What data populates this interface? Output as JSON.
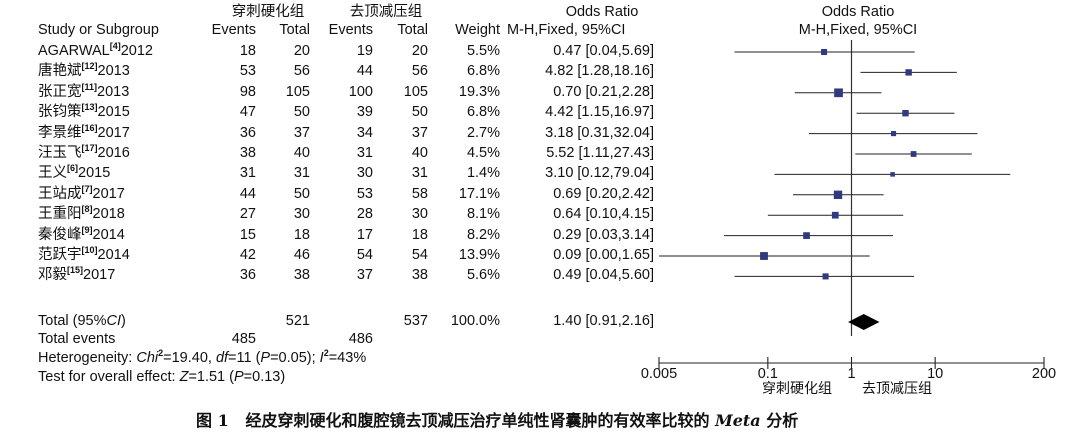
{
  "chart_data": {
    "type": "forest",
    "experimental_group": "穿刺硬化组",
    "control_group": "去顶减压组",
    "columns": {
      "study": "Study or Subgroup",
      "events": "Events",
      "total": "Total",
      "weight": "Weight",
      "or_title": "Odds Ratio",
      "or_method": "M-H,Fixed, 95%CI"
    },
    "studies": [
      {
        "name": "AGARWAL",
        "ref": "[4]",
        "year": "2012",
        "e1": "18",
        "n1": "20",
        "e2": "19",
        "n2": "20",
        "weight": "5.5%",
        "ci_text": "0.47 [0.04,5.69]",
        "or": 0.47,
        "lo": 0.04,
        "hi": 5.69
      },
      {
        "name": "唐艳斌",
        "ref": "[12]",
        "year": "2013",
        "e1": "53",
        "n1": "56",
        "e2": "44",
        "n2": "56",
        "weight": "6.8%",
        "ci_text": "4.82 [1.28,18.16]",
        "or": 4.82,
        "lo": 1.28,
        "hi": 18.16
      },
      {
        "name": "张正宽",
        "ref": "[11]",
        "year": "2013",
        "e1": "98",
        "n1": "105",
        "e2": "100",
        "n2": "105",
        "weight": "19.3%",
        "ci_text": "0.70 [0.21,2.28]",
        "or": 0.7,
        "lo": 0.21,
        "hi": 2.28
      },
      {
        "name": "张钧策",
        "ref": "[13]",
        "year": "2015",
        "e1": "47",
        "n1": "50",
        "e2": "39",
        "n2": "50",
        "weight": "6.8%",
        "ci_text": "4.42 [1.15,16.97]",
        "or": 4.42,
        "lo": 1.15,
        "hi": 16.97
      },
      {
        "name": "李景维",
        "ref": "[16]",
        "year": "2017",
        "e1": "36",
        "n1": "37",
        "e2": "34",
        "n2": "37",
        "weight": "2.7%",
        "ci_text": "3.18 [0.31,32.04]",
        "or": 3.18,
        "lo": 0.31,
        "hi": 32.04
      },
      {
        "name": "汪玉飞",
        "ref": "[17]",
        "year": "2016",
        "e1": "38",
        "n1": "40",
        "e2": "31",
        "n2": "40",
        "weight": "4.5%",
        "ci_text": "5.52 [1.11,27.43]",
        "or": 5.52,
        "lo": 1.11,
        "hi": 27.43
      },
      {
        "name": "王义",
        "ref": "[6]",
        "year": "2015",
        "e1": "31",
        "n1": "31",
        "e2": "30",
        "n2": "31",
        "weight": "1.4%",
        "ci_text": "3.10 [0.12,79.04]",
        "or": 3.1,
        "lo": 0.12,
        "hi": 79.04
      },
      {
        "name": "王站成",
        "ref": "[7]",
        "year": "2017",
        "e1": "44",
        "n1": "50",
        "e2": "53",
        "n2": "58",
        "weight": "17.1%",
        "ci_text": "0.69 [0.20,2.42]",
        "or": 0.69,
        "lo": 0.2,
        "hi": 2.42
      },
      {
        "name": "王重阳",
        "ref": "[8]",
        "year": "2018",
        "e1": "27",
        "n1": "30",
        "e2": "28",
        "n2": "30",
        "weight": "8.1%",
        "ci_text": "0.64 [0.10,4.15]",
        "or": 0.64,
        "lo": 0.1,
        "hi": 4.15
      },
      {
        "name": "秦俊峰",
        "ref": "[9]",
        "year": "2014",
        "e1": "15",
        "n1": "18",
        "e2": "17",
        "n2": "18",
        "weight": "8.2%",
        "ci_text": "0.29 [0.03,3.14]",
        "or": 0.29,
        "lo": 0.03,
        "hi": 3.14
      },
      {
        "name": "范跃宇",
        "ref": "[10]",
        "year": "2014",
        "e1": "42",
        "n1": "46",
        "e2": "54",
        "n2": "54",
        "weight": "13.9%",
        "ci_text": "0.09 [0.00,1.65]",
        "or": 0.09,
        "lo": 0.0,
        "hi": 1.65
      },
      {
        "name": "邓毅",
        "ref": "[15]",
        "year": "2017",
        "e1": "36",
        "n1": "38",
        "e2": "37",
        "n2": "38",
        "weight": "5.6%",
        "ci_text": "0.49 [0.04,5.60]",
        "or": 0.49,
        "lo": 0.04,
        "hi": 5.6
      }
    ],
    "total": {
      "label_prefix": "Total (95%",
      "label_ci": "CI",
      "label_suffix": ")",
      "n1": "521",
      "n2": "537",
      "weight": "100.0%",
      "ci_text": "1.40 [0.91,2.16]",
      "or": 1.4,
      "lo": 0.91,
      "hi": 2.16
    },
    "total_events": {
      "label": "Total events",
      "e1": "485",
      "e2": "486"
    },
    "heterogeneity": {
      "prefix": "Heterogeneity: ",
      "chi_label": "Chi",
      "chi_sup": "2",
      "chi_value": "=19.40, ",
      "df_label": "df",
      "df_value": "=11 (",
      "p_label": "P",
      "p_value": "=0.05); ",
      "i_label": "I",
      "i_sup": "2",
      "i_value": "=43%"
    },
    "overall_effect": {
      "prefix": "Test for overall effect: ",
      "z_label": "Z",
      "z_value": "=1.51 (",
      "p_label": "P",
      "p_value": "=0.13)"
    },
    "x_axis": {
      "scale": "log",
      "range": [
        0.005,
        200
      ],
      "ticks": [
        0.005,
        0.1,
        1,
        10,
        200
      ],
      "tick_labels": [
        "0.005",
        "0.1",
        "1",
        "10",
        "200"
      ],
      "favours_left": "穿刺硬化组",
      "favours_right": "去顶减压组"
    },
    "caption": {
      "fig_no": "图 1",
      "text_before": "经皮穿刺硬化和腹腔镜去顶减压治疗单纯性肾囊肿的有效率比较的 ",
      "text_italic": "Meta",
      "text_after": " 分析"
    }
  }
}
